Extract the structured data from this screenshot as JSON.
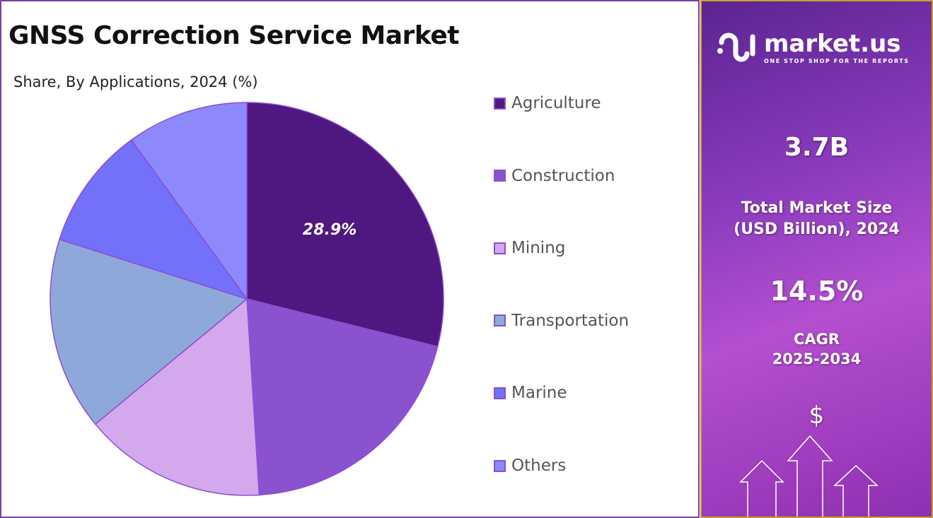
{
  "header": {
    "title": "GNSS Correction Service Market",
    "subtitle": "Share, By Applications, 2024 (%)"
  },
  "chart_data": {
    "type": "pie",
    "title": "GNSS Correction Service Market",
    "subtitle": "Share, By Applications, 2024 (%)",
    "categories": [
      "Agriculture",
      "Construction",
      "Mining",
      "Transportation",
      "Marine",
      "Others"
    ],
    "values": [
      28.9,
      20.1,
      15.0,
      15.9,
      10.1,
      10.0
    ],
    "colors": [
      "#4f1780",
      "#8b52d0",
      "#d4a8ec",
      "#8fa8da",
      "#7370fa",
      "#8d88fb"
    ],
    "data_labels": [
      "28.9%",
      "",
      "",
      "",
      "",
      ""
    ],
    "legend_position": "right"
  },
  "sidebar": {
    "brand": "market.us",
    "tagline": "ONE STOP SHOP FOR THE REPORTS",
    "market_size": "3.7B",
    "market_size_label_1": "Total Market Size",
    "market_size_label_2": "(USD Billion), 2024",
    "cagr": "14.5%",
    "cagr_label_1": "CAGR",
    "cagr_label_2": "2025-2034",
    "dollar": "$"
  }
}
